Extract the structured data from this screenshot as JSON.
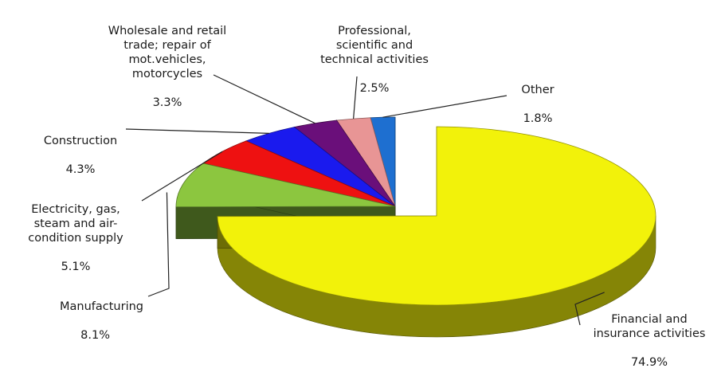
{
  "chart_data": {
    "type": "pie",
    "title": "",
    "slices": [
      {
        "label": "Financial and\ninsurance activities",
        "value": 74.9,
        "display": "74.9%",
        "color": "#f2f20a"
      },
      {
        "label": "Manufacturing",
        "value": 8.1,
        "display": "8.1%",
        "color": "#8cc63f"
      },
      {
        "label": "Electricity, gas,\nsteam and air-\ncondition supply",
        "value": 5.1,
        "display": "5.1%",
        "color": "#ee1111"
      },
      {
        "label": "Construction",
        "value": 4.3,
        "display": "4.3%",
        "color": "#1a1aee"
      },
      {
        "label": "Wholesale and retail\ntrade; repair of\nmot.vehicles,\nmotorcycles",
        "value": 3.3,
        "display": "3.3%",
        "color": "#6a0f7a"
      },
      {
        "label": "Professional,\nscientific and\ntechnical activities",
        "value": 2.5,
        "display": "2.5%",
        "color": "#e89595"
      },
      {
        "label": "Other",
        "value": 1.8,
        "display": "1.8%",
        "color": "#1e6fd0"
      }
    ]
  }
}
